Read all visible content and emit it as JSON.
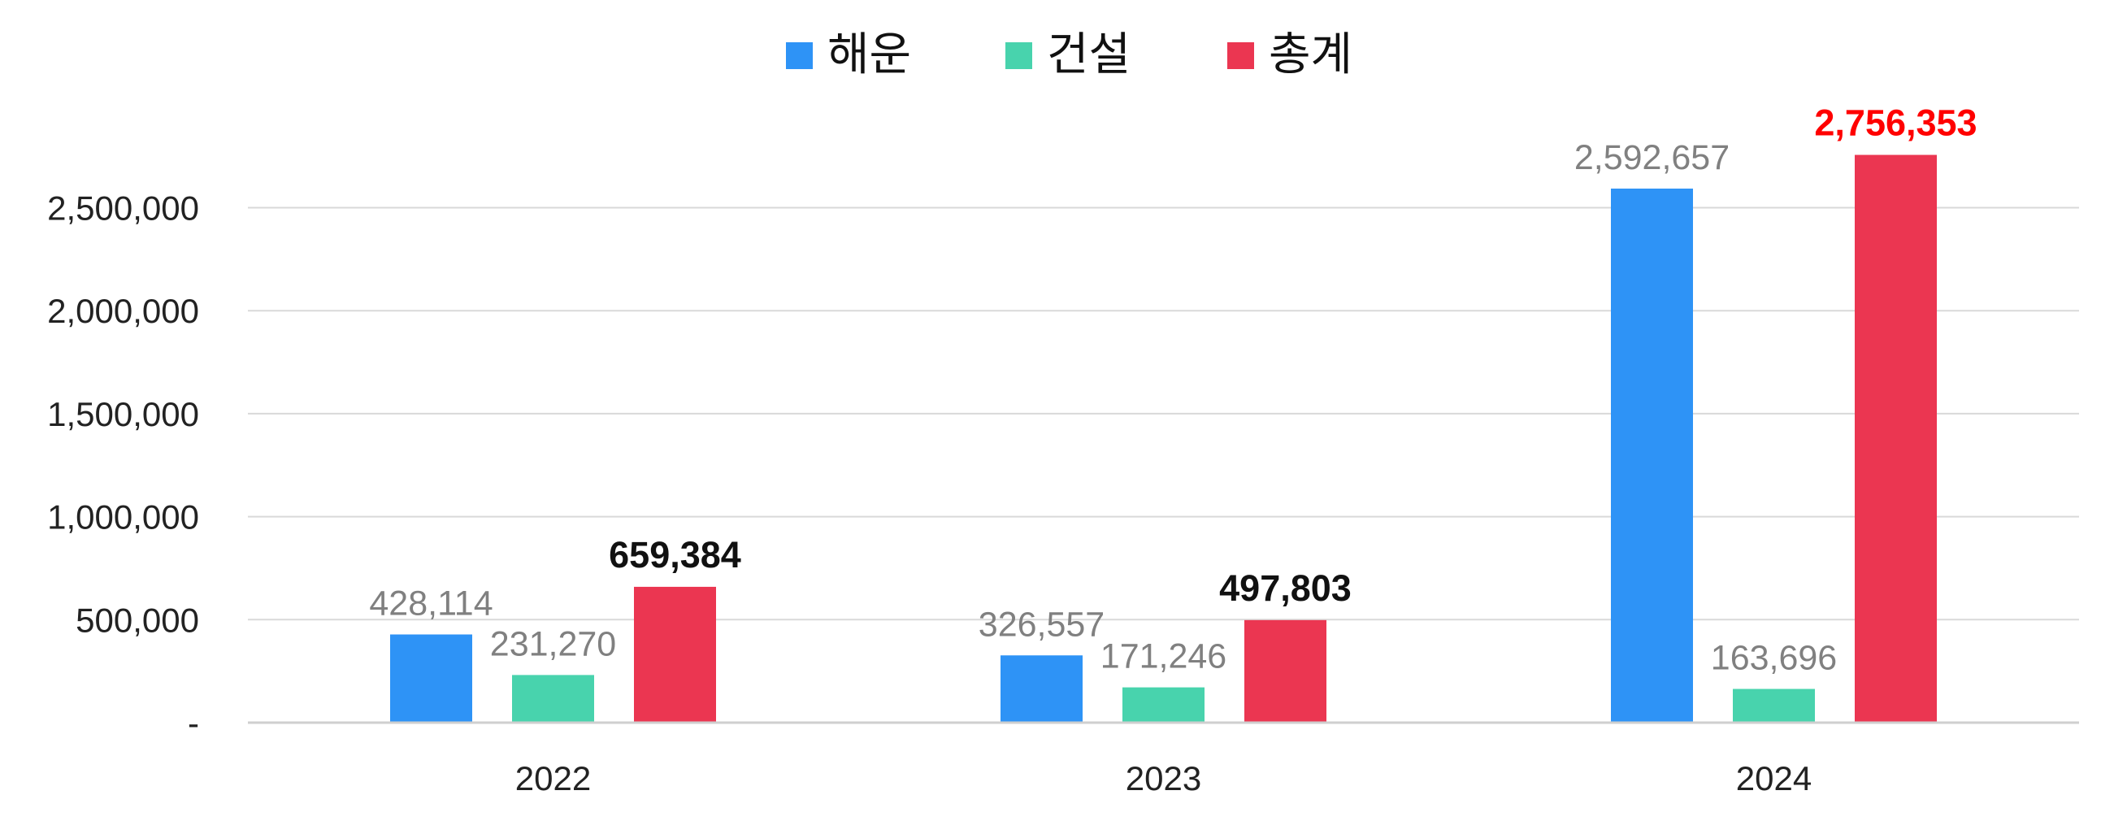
{
  "colors": {
    "series_0": "#2e93f6",
    "series_1": "#48d3ad",
    "series_2": "#eb3651",
    "grid": "#d9d9d9",
    "axis": "#cfcfcf",
    "label_gray": "#808080",
    "label_black": "#111111",
    "label_red": "#ff0000"
  },
  "chart_data": {
    "type": "bar",
    "title": "",
    "xlabel": "",
    "ylabel": "",
    "categories": [
      "2022",
      "2023",
      "2024"
    ],
    "series": [
      {
        "name": "해운",
        "values": [
          428114,
          326557,
          2592657
        ]
      },
      {
        "name": "건설",
        "values": [
          231270,
          171246,
          163696
        ]
      },
      {
        "name": "총계",
        "values": [
          659384,
          497803,
          2756353
        ]
      }
    ],
    "data_labels": [
      [
        "428,114",
        "231,270",
        "659,384"
      ],
      [
        "326,557",
        "171,246",
        "497,803"
      ],
      [
        "2,592,657",
        "163,696",
        "2,756,353"
      ]
    ],
    "data_label_style": [
      [
        "gray",
        "gray",
        "bold-black"
      ],
      [
        "gray",
        "gray",
        "bold-black"
      ],
      [
        "gray",
        "gray",
        "bold-red"
      ]
    ],
    "ylim": [
      0,
      2756353
    ],
    "yticks": [
      0,
      500000,
      1000000,
      1500000,
      2000000,
      2500000
    ],
    "ytick_labels": [
      "-",
      "500,000",
      "1,000,000",
      "1,500,000",
      "2,000,000",
      "2,500,000"
    ],
    "grid": true,
    "legend_position": "top-center"
  }
}
